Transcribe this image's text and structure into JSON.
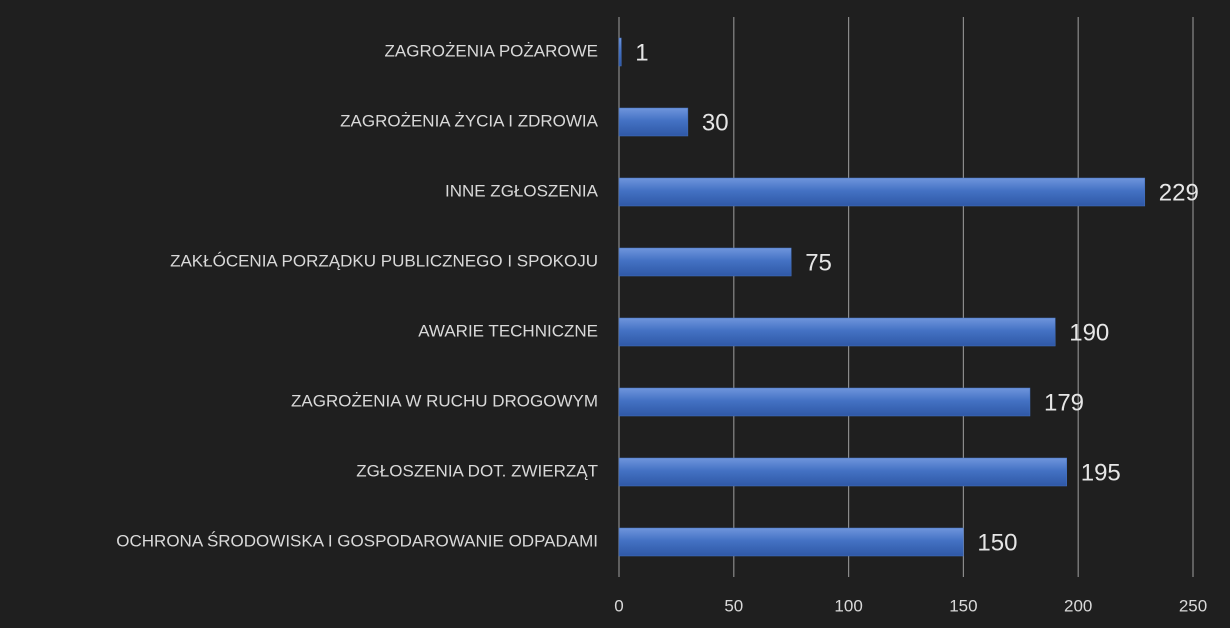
{
  "chart_data": {
    "type": "bar",
    "orientation": "horizontal",
    "categories": [
      "ZAGROŻENIA POŻAROWE",
      "ZAGROŻENIA ŻYCIA I ZDROWIA",
      "INNE ZGŁOSZENIA",
      "ZAKŁÓCENIA PORZĄDKU PUBLICZNEGO I SPOKOJU",
      "AWARIE TECHNICZNE",
      "ZAGROŻENIA W RUCHU DROGOWYM",
      "ZGŁOSZENIA DOT. ZWIERZĄT",
      "OCHRONA ŚRODOWISKA I GOSPODAROWANIE ODPADAMI"
    ],
    "values": [
      1,
      30,
      229,
      75,
      190,
      179,
      195,
      150
    ],
    "color": "#4472c4",
    "xlim": [
      0,
      250
    ],
    "xticks": [
      0,
      50,
      100,
      150,
      200,
      250
    ],
    "grid": true
  }
}
